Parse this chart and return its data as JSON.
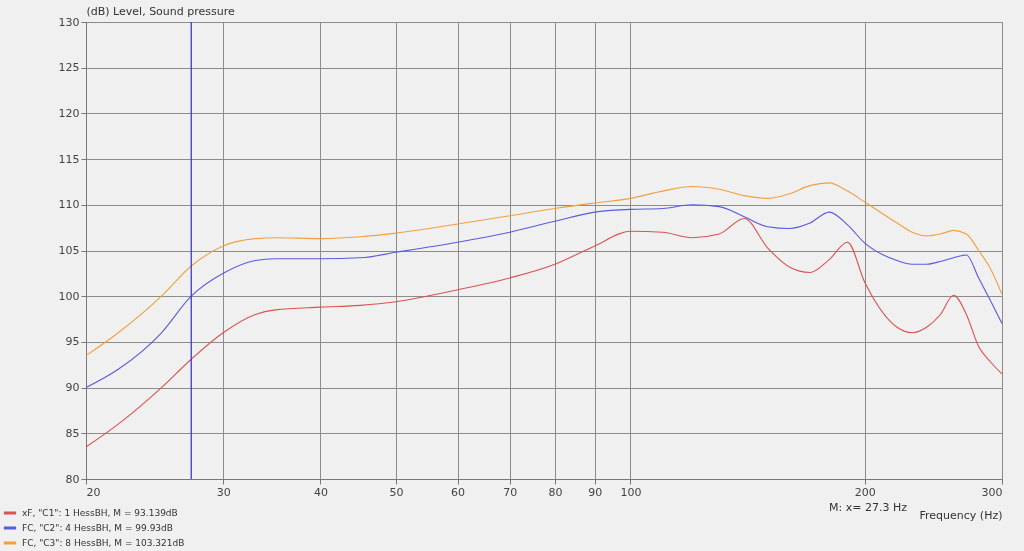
{
  "chart_data": {
    "type": "line",
    "ylabel": "(dB)  Level, Sound pressure",
    "xlabel": "Frequency  (Hz)",
    "x": [
      20,
      22,
      25,
      27.3,
      30,
      33,
      35,
      40,
      45,
      50,
      60,
      70,
      80,
      90,
      100,
      110,
      120,
      130,
      140,
      150,
      160,
      170,
      180,
      190,
      200,
      220,
      230,
      240,
      250,
      260,
      270,
      280,
      290,
      300
    ],
    "series": [
      {
        "name": "xF, \"C1\": 1 HessBH, M = 93.139dB",
        "color": "#d9534f",
        "values": [
          83.5,
          86,
          90,
          93.1,
          96,
          98,
          98.5,
          98.8,
          99,
          99.4,
          100.7,
          102,
          103.5,
          105.5,
          107.1,
          107,
          106.4,
          106.8,
          108.5,
          105.3,
          103.2,
          102.6,
          104,
          105.9,
          101.5,
          96.6,
          96,
          96.6,
          98,
          100.1,
          98,
          94.5,
          92.8,
          91.5
        ]
      },
      {
        "name": "FC, \"C2\": 4 HessBH, M = 99.93dB",
        "color": "#5a5adf",
        "values": [
          90,
          92,
          96,
          100,
          102.5,
          103.9,
          104.1,
          104.1,
          104.2,
          104.8,
          105.9,
          107,
          108.2,
          109.2,
          109.5,
          109.6,
          110,
          109.8,
          108.7,
          107.6,
          107.4,
          108,
          109.2,
          107.8,
          105.8,
          103.9,
          103.5,
          103.5,
          103.8,
          104.2,
          104.5,
          102,
          99.5,
          97
        ]
      },
      {
        "name": "FC, \"C3\": 8 HessBH, M = 103.321dB",
        "color": "#f0a040",
        "values": [
          93.5,
          96,
          100,
          103.3,
          105.5,
          106.3,
          106.4,
          106.3,
          106.5,
          106.9,
          107.9,
          108.8,
          109.6,
          110.2,
          110.7,
          111.5,
          112,
          111.7,
          111,
          110.7,
          111.2,
          112.1,
          112.4,
          111.5,
          110.3,
          108,
          107,
          106.6,
          106.8,
          107.2,
          106.8,
          105,
          103,
          100.2
        ]
      }
    ],
    "xlim": [
      20,
      300
    ],
    "xticks": [
      20,
      30,
      40,
      50,
      60,
      70,
      80,
      90,
      100,
      200,
      300
    ],
    "ylim": [
      80,
      130
    ],
    "yticks": [
      80,
      85,
      90,
      95,
      100,
      105,
      110,
      115,
      120,
      125,
      130
    ],
    "log": "x",
    "grid": true,
    "legend": "bottom left",
    "ref_lines": [
      {
        "axis": "x",
        "value": 27.3,
        "color": "#3a3ac8"
      }
    ],
    "annotations": [
      "M:  x= 27.3 Hz"
    ]
  }
}
